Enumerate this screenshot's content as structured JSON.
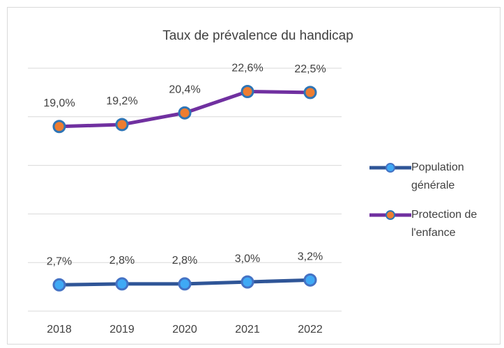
{
  "chart_data": {
    "type": "line",
    "title": "Taux de prévalence du handicap",
    "categories": [
      "2018",
      "2019",
      "2020",
      "2021",
      "2022"
    ],
    "series": [
      {
        "name": "Population générale",
        "color": "#2f5597",
        "marker_color": "#3fa9f5",
        "marker_edge": "#4472c4",
        "values": [
          2.7,
          2.8,
          2.8,
          3.0,
          3.2
        ],
        "value_labels": [
          "2,7%",
          "2,8%",
          "2,8%",
          "3,0%",
          "3,2%"
        ]
      },
      {
        "name": "Protection de l'enfance",
        "color": "#7030a0",
        "marker_color": "#ed7d31",
        "marker_edge": "#2e75b6",
        "values": [
          19.0,
          19.2,
          20.4,
          22.6,
          22.5
        ],
        "value_labels": [
          "19,0%",
          "19,2%",
          "20,4%",
          "22,6%",
          "22,5%"
        ]
      }
    ],
    "ylim": [
      0,
      25
    ],
    "yticks": [
      0,
      5,
      10,
      15,
      20,
      25
    ],
    "grid": true,
    "legend": "right"
  }
}
